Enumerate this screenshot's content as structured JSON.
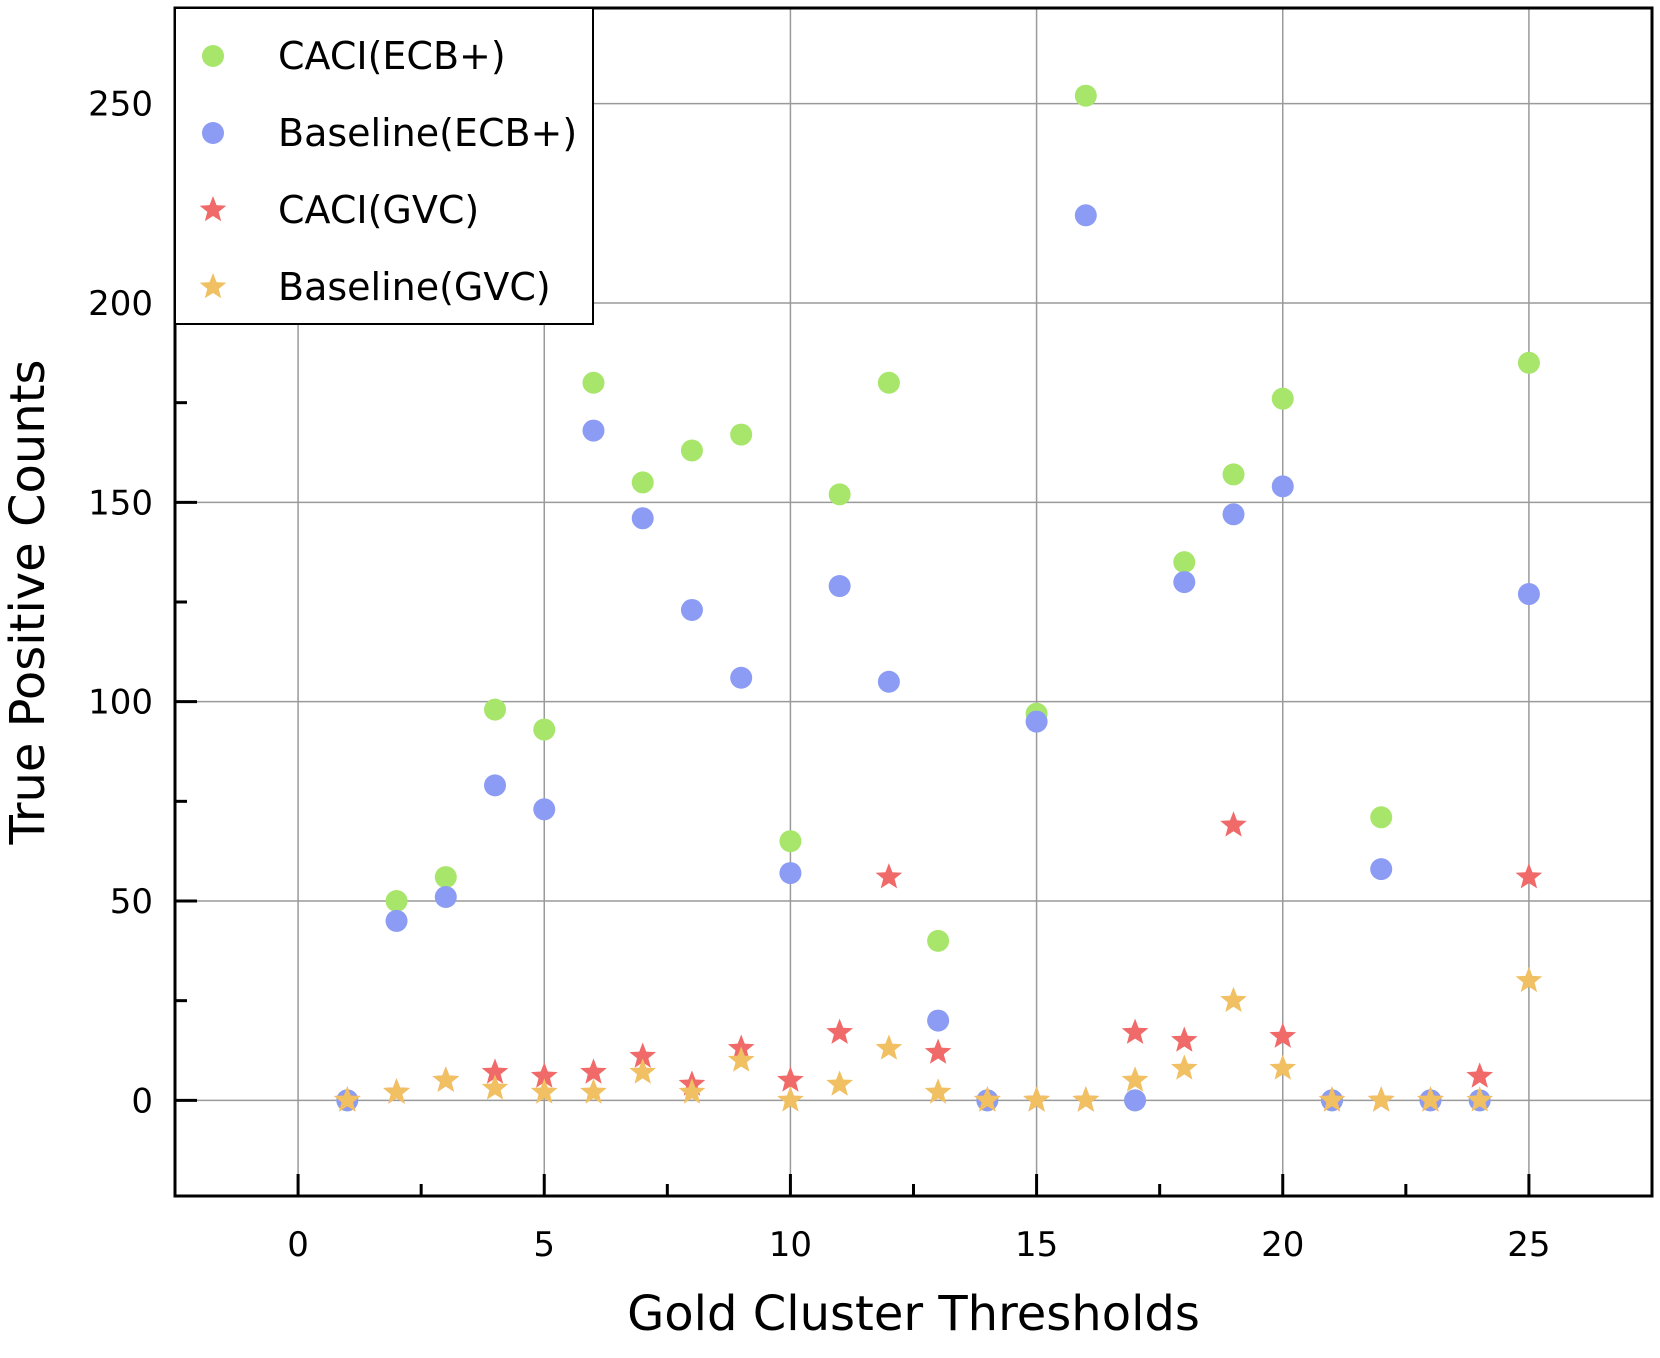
{
  "chart_data": {
    "type": "scatter",
    "xlabel": "Gold Cluster Thresholds",
    "ylabel": "True Positive Counts",
    "xlim": [
      -2.5,
      27.5
    ],
    "ylim": [
      -24,
      274
    ],
    "xticks": [
      0,
      5,
      10,
      15,
      20,
      25
    ],
    "yticks": [
      0,
      50,
      100,
      150,
      200,
      250
    ],
    "grid": true,
    "legend_position": "top-left",
    "series": [
      {
        "name": "CACI(ECB+)",
        "marker": "circle",
        "color": "#a7e66b",
        "points": [
          [
            1,
            0
          ],
          [
            2,
            50
          ],
          [
            3,
            56
          ],
          [
            4,
            98
          ],
          [
            5,
            93
          ],
          [
            6,
            180
          ],
          [
            7,
            155
          ],
          [
            8,
            163
          ],
          [
            9,
            167
          ],
          [
            10,
            65
          ],
          [
            11,
            152
          ],
          [
            12,
            180
          ],
          [
            13,
            40
          ],
          [
            14,
            0
          ],
          [
            15,
            97
          ],
          [
            16,
            252
          ],
          [
            17,
            0
          ],
          [
            18,
            135
          ],
          [
            19,
            157
          ],
          [
            20,
            176
          ],
          [
            21,
            0
          ],
          [
            22,
            71
          ],
          [
            23,
            0
          ],
          [
            24,
            0
          ],
          [
            25,
            185
          ]
        ]
      },
      {
        "name": "Baseline(ECB+)",
        "marker": "circle",
        "color": "#8c9bf3",
        "points": [
          [
            1,
            0
          ],
          [
            2,
            45
          ],
          [
            3,
            51
          ],
          [
            4,
            79
          ],
          [
            5,
            73
          ],
          [
            6,
            168
          ],
          [
            7,
            146
          ],
          [
            8,
            123
          ],
          [
            9,
            106
          ],
          [
            10,
            57
          ],
          [
            11,
            129
          ],
          [
            12,
            105
          ],
          [
            13,
            20
          ],
          [
            14,
            0
          ],
          [
            15,
            95
          ],
          [
            16,
            222
          ],
          [
            17,
            0
          ],
          [
            18,
            130
          ],
          [
            19,
            147
          ],
          [
            20,
            154
          ],
          [
            21,
            0
          ],
          [
            22,
            58
          ],
          [
            23,
            0
          ],
          [
            24,
            0
          ],
          [
            25,
            127
          ]
        ]
      },
      {
        "name": "CACI(GVC)",
        "marker": "star",
        "color": "#f06a6a",
        "points": [
          [
            1,
            0
          ],
          [
            2,
            2
          ],
          [
            3,
            5
          ],
          [
            4,
            7
          ],
          [
            5,
            6
          ],
          [
            6,
            7
          ],
          [
            7,
            11
          ],
          [
            8,
            4
          ],
          [
            9,
            13
          ],
          [
            10,
            5
          ],
          [
            11,
            17
          ],
          [
            12,
            56
          ],
          [
            13,
            12
          ],
          [
            14,
            0
          ],
          [
            15,
            0
          ],
          [
            16,
            0
          ],
          [
            17,
            17
          ],
          [
            18,
            15
          ],
          [
            19,
            69
          ],
          [
            20,
            16
          ],
          [
            21,
            0
          ],
          [
            22,
            0
          ],
          [
            23,
            0
          ],
          [
            24,
            6
          ],
          [
            25,
            56
          ]
        ]
      },
      {
        "name": "Baseline(GVC)",
        "marker": "star",
        "color": "#f0c062",
        "points": [
          [
            1,
            0
          ],
          [
            2,
            2
          ],
          [
            3,
            5
          ],
          [
            4,
            3
          ],
          [
            5,
            2
          ],
          [
            6,
            2
          ],
          [
            7,
            7
          ],
          [
            8,
            2
          ],
          [
            9,
            10
          ],
          [
            10,
            0
          ],
          [
            11,
            4
          ],
          [
            12,
            13
          ],
          [
            13,
            2
          ],
          [
            14,
            0
          ],
          [
            15,
            0
          ],
          [
            16,
            0
          ],
          [
            17,
            5
          ],
          [
            18,
            8
          ],
          [
            19,
            25
          ],
          [
            20,
            8
          ],
          [
            21,
            0
          ],
          [
            22,
            0
          ],
          [
            23,
            0
          ],
          [
            24,
            0
          ],
          [
            25,
            30
          ]
        ]
      }
    ]
  }
}
